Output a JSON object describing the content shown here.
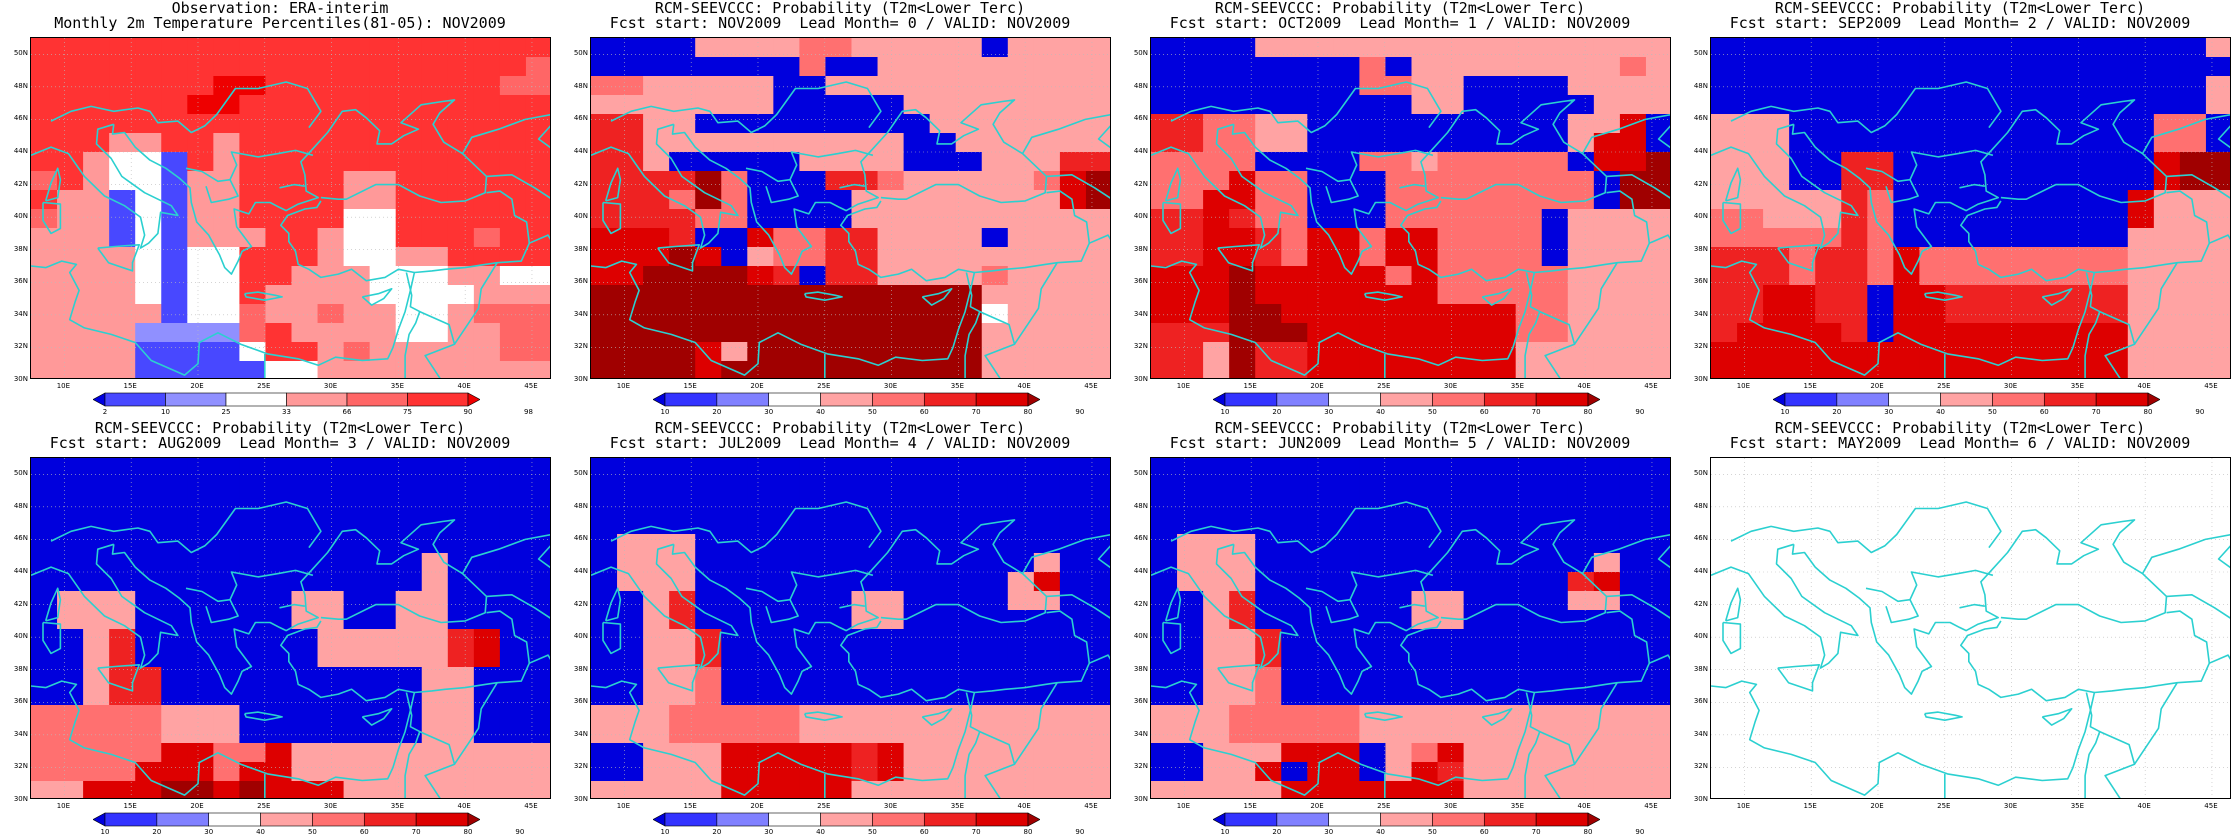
{
  "colors": {
    "coast": "#2bd0d0",
    "grid": "#bbbbbb",
    "obs_scale": [
      "#0000e0",
      "#4848ff",
      "#9090ff",
      "#ffffff",
      "#ff9999",
      "#ff6666",
      "#ff3333",
      "#ee0000"
    ],
    "prob_scale": [
      "#0000dd",
      "#3333ff",
      "#8080ff",
      "#ffffff",
      "#ffa3a3",
      "#ff7070",
      "#ee2222",
      "#dd0000",
      "#a00000"
    ]
  },
  "axes": {
    "y_labels": [
      "50N",
      "48N",
      "46N",
      "44N",
      "42N",
      "40N",
      "38N",
      "36N",
      "34N",
      "32N",
      "30N"
    ],
    "x_labels": [
      "10E",
      "15E",
      "20E",
      "25E",
      "30E",
      "35E",
      "40E",
      "45E"
    ]
  },
  "panels": [
    {
      "title_1": "Observation: ERA-interim",
      "title_2": "Monthly 2m Temperature Percentiles(81-05): NOV2009",
      "scale": "obs",
      "colorbar_labels": [
        "2",
        "10",
        "25",
        "33",
        "66",
        "75",
        "90",
        "98"
      ],
      "grid": [
        "66666666666666666666",
        "66666666666666666665",
        "66666667766666666655",
        "66666677666666666666",
        "66666666666666666666",
        "66644664666666666666",
        "66433164666666666666",
        "56433144666644666666",
        "64413144666644666666",
        "54413144666633666666",
        "44413144466433666566",
        "44443133666433446666",
        "44443133664443334433",
        "44443133644443333444",
        "44444133544544334555",
        "44442222564444334455",
        "44441111366454444455",
        "44441111133444444444"
      ]
    },
    {
      "title_1": "RCM-SEEVCCC: Probability (T2m<Lower Terc)",
      "title_2": "Fcst start: NOV2009  Lead Month= 0 / VALID: NOV2009",
      "scale": "prob",
      "colorbar_labels": [
        "10",
        "20",
        "30",
        "40",
        "50",
        "60",
        "70",
        "80",
        "90"
      ],
      "grid": [
        "00004444554444404444",
        "00000000500444444444",
        "55444440044444444444",
        "44444440000044444444",
        "66440000000004444444",
        "66444444444400444444",
        "66400000444400044466",
        "66668500066544444578",
        "66658500004444444478",
        "66665500004444444444",
        "77760075566444404444",
        "77787045566444444444",
        "77888876066444454444",
        "88888888888888844444",
        "88888888888888834444",
        "88888888888888844444",
        "88887488888888844444",
        "88887888888888844444"
      ]
    },
    {
      "title_1": "RCM-SEEVCCC: Probability (T2m<Lower Terc)",
      "title_2": "Fcst start: OCT2009  Lead Month= 1 / VALID: NOV2009",
      "scale": "prob",
      "colorbar_labels": [
        "10",
        "20",
        "30",
        "40",
        "50",
        "60",
        "70",
        "80",
        "90"
      ],
      "grid": [
        "00004444444444444444",
        "00000000504444444454",
        "00000000554400004444",
        "00000000004400000444",
        "66554400000000004470",
        "66554400000000004770",
        "55550000554555550778",
        "55575500055555555088",
        "55775500055555555088",
        "66765500055555504444",
        "66776577577555504444",
        "66776577577555504444",
        "77787777757555554444",
        "77787777777555554444",
        "77788777777777554444",
        "66688877777777554444",
        "66486677777777444444",
        "66486677777777444444"
      ]
    },
    {
      "title_1": "RCM-SEEVCCC: Probability (T2m<Lower Terc)",
      "title_2": "Fcst start: SEP2009  Lead Month= 2 / VALID: NOV2009",
      "scale": "prob",
      "colorbar_labels": [
        "10",
        "20",
        "30",
        "40",
        "50",
        "60",
        "70",
        "80",
        "90"
      ],
      "grid": [
        "00000000000000000004",
        "00000000000000000000",
        "00000000000000000004",
        "00000000000000000004",
        "44400000000000000550",
        "44400000000000000550",
        "44400660000000000788",
        "44400660000000000788",
        "44444650000000007444",
        "55444650000000007444",
        "55555650000000004444",
        "66656657555555554444",
        "66656657555555554444",
        "66776607766666664444",
        "66776607766666664444",
        "67777607777777774444",
        "77777777777777774444",
        "77777777777777774444"
      ]
    },
    {
      "title_1": "RCM-SEEVCCC: Probability (T2m<Lower Terc)",
      "title_2": "Fcst start: AUG2009  Lead Month= 3 / VALID: NOV2009",
      "scale": "prob",
      "colorbar_labels": [
        "10",
        "20",
        "30",
        "40",
        "50",
        "60",
        "70",
        "80",
        "90"
      ],
      "grid": [
        "00000000000000000000",
        "00000000000000000000",
        "00000000000000000000",
        "00000000000000000000",
        "00000000000000000000",
        "00000000000000040000",
        "00000000000000040000",
        "04440000004400440000",
        "04440000004400440000",
        "00460000000444446700",
        "00460000000444446700",
        "00466000000000044000",
        "00466000000000044000",
        "55555444000000044000",
        "55555444000000044000",
        "55555775574444444444",
        "55557775774444444444",
        "44777887877744444444"
      ]
    },
    {
      "title_1": "RCM-SEEVCCC: Probability (T2m<Lower Terc)",
      "title_2": "Fcst start: JUL2009  Lead Month= 4 / VALID: NOV2009",
      "scale": "prob",
      "colorbar_labels": [
        "10",
        "20",
        "30",
        "40",
        "50",
        "60",
        "70",
        "80",
        "90"
      ],
      "grid": [
        "00000000000000000000",
        "00000000000000000000",
        "00000000000000000000",
        "00000000000000000000",
        "04440000000000000000",
        "04440000000000000400",
        "04440000000000004700",
        "00460000004400004400",
        "00460000004400000000",
        "00446000000000000000",
        "00446000000000000000",
        "00445000000000000000",
        "00445000000000000000",
        "44455555444444444444",
        "44455555444444444444",
        "00444777776744444444",
        "00444777776744444444",
        "44444777774444444444"
      ]
    },
    {
      "title_1": "RCM-SEEVCCC: Probability (T2m<Lower Terc)",
      "title_2": "Fcst start: JUN2009  Lead Month= 5 / VALID: NOV2009",
      "scale": "prob",
      "colorbar_labels": [
        "10",
        "20",
        "30",
        "40",
        "50",
        "60",
        "70",
        "80",
        "90"
      ],
      "grid": [
        "00000000000000000000",
        "00000000000000000000",
        "00000000000000000000",
        "00000000000000000000",
        "04440000000000000000",
        "04440000000000000400",
        "04440000000000006700",
        "00460000004400004400",
        "00460000004400000000",
        "00446000000000000000",
        "00446000000000000000",
        "00445000000000000000",
        "00445000000000000000",
        "44455555444444444444",
        "44455555444444444444",
        "00444777045744444444",
        "00447077047644444444",
        "44444777777744444444"
      ]
    },
    {
      "title_1": "RCM-SEEVCCC: Probability (T2m<Lower Terc)",
      "title_2": "Fcst start: MAY2009  Lead Month= 6 / VALID: NOV2009",
      "scale": "none",
      "colorbar_labels": [],
      "grid": []
    }
  ]
}
